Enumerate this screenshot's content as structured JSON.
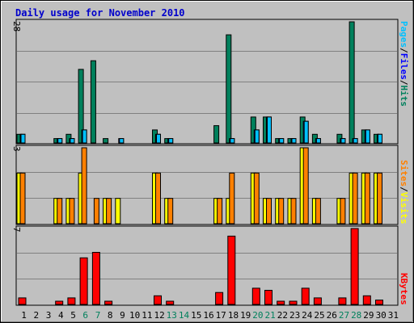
{
  "title": "Daily usage for November 2010",
  "colors": {
    "background": "#c0c0c0",
    "plot_background": "#c0c0c0",
    "title": "#0000cc",
    "hits": "#00805c",
    "files": "#0000ff",
    "pages": "#00c0ff",
    "visits": "#ffff00",
    "sites": "#ff8000",
    "kbytes": "#ff0000",
    "weekend_label": "#00805c",
    "weekday_label": "#000000"
  },
  "chart_data": [
    {
      "type": "bar",
      "panel": "pages-files-hits",
      "legend": [
        "Pages",
        "/",
        "Files",
        "/",
        "Hits"
      ],
      "ymax_label": "28",
      "ylim": [
        0,
        28
      ],
      "categories": [
        "1",
        "2",
        "3",
        "4",
        "5",
        "6",
        "7",
        "8",
        "9",
        "10",
        "11",
        "12",
        "13",
        "14",
        "15",
        "16",
        "17",
        "18",
        "19",
        "20",
        "21",
        "22",
        "23",
        "24",
        "25",
        "26",
        "27",
        "28",
        "29",
        "30",
        "31"
      ],
      "series": [
        {
          "name": "Hits",
          "values": [
            2,
            0,
            0,
            1,
            2,
            17,
            19,
            1,
            0,
            0,
            0,
            3,
            1,
            0,
            0,
            0,
            4,
            25,
            0,
            6,
            6,
            1,
            1,
            6,
            2,
            0,
            2,
            28,
            3,
            2,
            0
          ]
        },
        {
          "name": "Files",
          "values": [
            2,
            0,
            0,
            1,
            1,
            3,
            0,
            0,
            1,
            0,
            0,
            2,
            1,
            0,
            0,
            0,
            0,
            1,
            0,
            3,
            6,
            1,
            1,
            5,
            1,
            0,
            1,
            1,
            3,
            2,
            0
          ]
        },
        {
          "name": "Pages",
          "values": [
            2,
            0,
            0,
            1,
            1,
            3,
            0,
            0,
            1,
            0,
            0,
            2,
            1,
            0,
            0,
            0,
            0,
            1,
            0,
            3,
            6,
            1,
            1,
            5,
            1,
            0,
            1,
            1,
            3,
            2,
            0
          ]
        }
      ]
    },
    {
      "type": "bar",
      "panel": "visits-sites",
      "legend": [
        "Sites",
        "/",
        "Visits"
      ],
      "ymax_label": "3",
      "ylim": [
        0,
        3
      ],
      "categories": [
        "1",
        "2",
        "3",
        "4",
        "5",
        "6",
        "7",
        "8",
        "9",
        "10",
        "11",
        "12",
        "13",
        "14",
        "15",
        "16",
        "17",
        "18",
        "19",
        "20",
        "21",
        "22",
        "23",
        "24",
        "25",
        "26",
        "27",
        "28",
        "29",
        "30",
        "31"
      ],
      "series": [
        {
          "name": "Visits",
          "values": [
            2,
            0,
            0,
            1,
            1,
            2,
            0,
            1,
            1,
            0,
            0,
            2,
            1,
            0,
            0,
            0,
            1,
            1,
            0,
            2,
            1,
            1,
            1,
            3,
            1,
            0,
            1,
            2,
            2,
            2,
            0
          ]
        },
        {
          "name": "Sites",
          "values": [
            2,
            0,
            0,
            1,
            1,
            3,
            1,
            1,
            0,
            0,
            0,
            2,
            1,
            0,
            0,
            0,
            1,
            2,
            0,
            2,
            1,
            1,
            1,
            3,
            1,
            0,
            1,
            2,
            2,
            2,
            0
          ]
        }
      ]
    },
    {
      "type": "bar",
      "panel": "kbytes",
      "legend": [
        "KBytes"
      ],
      "ymax_label": "7",
      "ylim": [
        0,
        7
      ],
      "categories": [
        "1",
        "2",
        "3",
        "4",
        "5",
        "6",
        "7",
        "8",
        "9",
        "10",
        "11",
        "12",
        "13",
        "14",
        "15",
        "16",
        "17",
        "18",
        "19",
        "20",
        "21",
        "22",
        "23",
        "24",
        "25",
        "26",
        "27",
        "28",
        "29",
        "30",
        "31"
      ],
      "series": [
        {
          "name": "KBytes",
          "values": [
            0.6,
            0,
            0,
            0.3,
            0.6,
            4.3,
            4.8,
            0.3,
            0,
            0,
            0,
            0.8,
            0.3,
            0,
            0,
            0,
            1.1,
            6.3,
            0,
            1.5,
            1.3,
            0.3,
            0.3,
            1.5,
            0.6,
            0,
            0.6,
            7,
            0.8,
            0.4,
            0
          ]
        }
      ]
    }
  ],
  "day_labels": [
    "1",
    "2",
    "3",
    "4",
    "5",
    "6",
    "7",
    "8",
    "9",
    "10",
    "11",
    "12",
    "13",
    "14",
    "15",
    "16",
    "17",
    "18",
    "19",
    "20",
    "21",
    "22",
    "23",
    "24",
    "25",
    "26",
    "27",
    "28",
    "29",
    "30",
    "31"
  ],
  "weekend_days": [
    6,
    7,
    13,
    14,
    20,
    21,
    27,
    28
  ]
}
